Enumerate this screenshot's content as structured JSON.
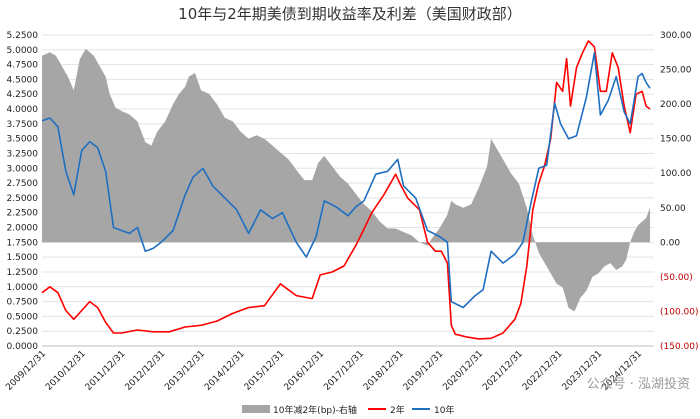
{
  "chart_data": {
    "type": "line",
    "title": "10年与2年期美债到期收益率及利差（美国财政部）",
    "xlabel": "",
    "ylabel_left": "",
    "ylabel_right": "",
    "y_left_ticks": [
      "0.0000",
      "0.2500",
      "0.5000",
      "0.7500",
      "1.0000",
      "1.2500",
      "1.5000",
      "1.7500",
      "2.0000",
      "2.2500",
      "2.5000",
      "2.7500",
      "3.0000",
      "3.2500",
      "3.5000",
      "3.7500",
      "4.0000",
      "4.2500",
      "4.5000",
      "4.7500",
      "5.0000",
      "5.2500"
    ],
    "y_left_range": [
      0,
      5.25
    ],
    "y_right_ticks": [
      "(150.00)",
      "(100.00)",
      "(50.00)",
      "0.00",
      "50.00",
      "100.00",
      "150.00",
      "200.00",
      "250.00",
      "300.00"
    ],
    "y_right_range": [
      -150,
      300
    ],
    "x_ticks": [
      "2009/12/31",
      "2010/12/31",
      "2011/12/31",
      "2012/12/31",
      "2013/12/31",
      "2014/12/31",
      "2015/12/31",
      "2016/12/31",
      "2017/12/31",
      "2018/12/31",
      "2019/12/31",
      "2020/12/31",
      "2021/12/31",
      "2022/12/31",
      "2023/12/31",
      "2024/12/31"
    ],
    "x_range": [
      2009.9,
      2025.3
    ],
    "legend": {
      "placement": "bottom-center",
      "entries": [
        "10年减2年(bp)-右轴",
        "2年",
        "10年"
      ]
    },
    "colors": {
      "spread": "#a6a6a6",
      "two_year": "#ff0000",
      "ten_year": "#1f6fc1",
      "negative_tick": "#c00000"
    },
    "series": [
      {
        "name": "10年减2年(bp)-右轴",
        "axis": "right",
        "kind": "area",
        "x": [
          2009.9,
          2010.1,
          2010.25,
          2010.4,
          2010.55,
          2010.7,
          2010.85,
          2011.0,
          2011.1,
          2011.2,
          2011.35,
          2011.5,
          2011.6,
          2011.75,
          2011.9,
          2012.1,
          2012.3,
          2012.5,
          2012.65,
          2012.8,
          2013.0,
          2013.2,
          2013.35,
          2013.5,
          2013.6,
          2013.75,
          2013.9,
          2014.1,
          2014.3,
          2014.5,
          2014.7,
          2014.9,
          2015.1,
          2015.3,
          2015.5,
          2015.7,
          2015.9,
          2016.1,
          2016.3,
          2016.5,
          2016.7,
          2016.85,
          2017.0,
          2017.2,
          2017.4,
          2017.6,
          2017.8,
          2018.0,
          2018.2,
          2018.4,
          2018.6,
          2018.8,
          2019.0,
          2019.2,
          2019.4,
          2019.6,
          2019.7,
          2019.9,
          2020.1,
          2020.2,
          2020.3,
          2020.5,
          2020.7,
          2020.9,
          2021.1,
          2021.2,
          2021.3,
          2021.5,
          2021.7,
          2021.9,
          2022.1,
          2022.25,
          2022.4,
          2022.55,
          2022.7,
          2022.85,
          2023.0,
          2023.15,
          2023.3,
          2023.45,
          2023.6,
          2023.75,
          2023.9,
          2024.05,
          2024.2,
          2024.35,
          2024.5,
          2024.6,
          2024.7,
          2024.8,
          2024.9,
          2025.0,
          2025.1,
          2025.2
        ],
        "values": [
          270,
          275,
          270,
          255,
          240,
          220,
          265,
          280,
          275,
          270,
          255,
          240,
          215,
          195,
          190,
          185,
          175,
          145,
          140,
          160,
          175,
          200,
          215,
          225,
          240,
          245,
          220,
          215,
          200,
          180,
          175,
          160,
          150,
          155,
          150,
          140,
          130,
          120,
          105,
          90,
          90,
          115,
          125,
          110,
          95,
          85,
          70,
          55,
          45,
          30,
          20,
          20,
          15,
          10,
          0,
          -5,
          5,
          20,
          40,
          60,
          55,
          50,
          55,
          80,
          110,
          150,
          140,
          120,
          100,
          85,
          50,
          10,
          -15,
          -30,
          -45,
          -60,
          -65,
          -95,
          -100,
          -80,
          -70,
          -50,
          -45,
          -35,
          -30,
          -40,
          -35,
          -25,
          0,
          15,
          25,
          30,
          35,
          50
        ]
      },
      {
        "name": "2年",
        "axis": "left",
        "kind": "line",
        "x": [
          2009.9,
          2010.1,
          2010.3,
          2010.5,
          2010.7,
          2010.9,
          2011.1,
          2011.3,
          2011.5,
          2011.7,
          2011.9,
          2012.3,
          2012.7,
          2013.1,
          2013.5,
          2013.9,
          2014.3,
          2014.7,
          2015.1,
          2015.5,
          2015.9,
          2016.3,
          2016.7,
          2016.9,
          2017.2,
          2017.5,
          2017.8,
          2017.95,
          2018.2,
          2018.5,
          2018.8,
          2018.9,
          2019.1,
          2019.4,
          2019.6,
          2019.8,
          2019.95,
          2020.1,
          2020.2,
          2020.3,
          2020.6,
          2020.9,
          2021.2,
          2021.5,
          2021.8,
          2021.95,
          2022.1,
          2022.25,
          2022.4,
          2022.55,
          2022.7,
          2022.85,
          2023.0,
          2023.1,
          2023.2,
          2023.35,
          2023.5,
          2023.65,
          2023.8,
          2023.95,
          2024.1,
          2024.25,
          2024.4,
          2024.55,
          2024.7,
          2024.85,
          2025.0,
          2025.1,
          2025.2
        ],
        "values": [
          0.9,
          1.0,
          0.9,
          0.6,
          0.45,
          0.6,
          0.75,
          0.65,
          0.4,
          0.22,
          0.22,
          0.27,
          0.24,
          0.24,
          0.32,
          0.35,
          0.42,
          0.55,
          0.65,
          0.68,
          1.05,
          0.85,
          0.8,
          1.2,
          1.25,
          1.35,
          1.7,
          1.9,
          2.25,
          2.55,
          2.9,
          2.75,
          2.5,
          2.3,
          1.75,
          1.6,
          1.6,
          1.4,
          0.35,
          0.2,
          0.15,
          0.12,
          0.13,
          0.22,
          0.45,
          0.72,
          1.35,
          2.3,
          2.75,
          3.05,
          3.5,
          4.45,
          4.3,
          4.85,
          4.05,
          4.7,
          4.95,
          5.15,
          5.05,
          4.3,
          4.3,
          4.95,
          4.7,
          4.05,
          3.6,
          4.25,
          4.3,
          4.05,
          4.0
        ]
      },
      {
        "name": "10年",
        "axis": "left",
        "kind": "line",
        "x": [
          2009.9,
          2010.1,
          2010.3,
          2010.5,
          2010.7,
          2010.9,
          2011.1,
          2011.3,
          2011.5,
          2011.7,
          2011.9,
          2012.1,
          2012.3,
          2012.5,
          2012.7,
          2012.9,
          2013.2,
          2013.5,
          2013.7,
          2013.95,
          2014.2,
          2014.5,
          2014.8,
          2015.1,
          2015.4,
          2015.7,
          2015.95,
          2016.3,
          2016.55,
          2016.8,
          2017.0,
          2017.3,
          2017.6,
          2017.8,
          2018.0,
          2018.3,
          2018.6,
          2018.85,
          2019.0,
          2019.3,
          2019.6,
          2019.9,
          2020.1,
          2020.2,
          2020.5,
          2020.8,
          2021.0,
          2021.2,
          2021.5,
          2021.8,
          2022.0,
          2022.2,
          2022.4,
          2022.6,
          2022.8,
          2022.95,
          2023.15,
          2023.35,
          2023.6,
          2023.8,
          2023.95,
          2024.15,
          2024.35,
          2024.55,
          2024.7,
          2024.9,
          2025.0,
          2025.1,
          2025.2
        ],
        "values": [
          3.8,
          3.85,
          3.7,
          2.95,
          2.55,
          3.3,
          3.45,
          3.35,
          2.95,
          2.0,
          1.95,
          1.9,
          2.0,
          1.6,
          1.65,
          1.75,
          1.95,
          2.55,
          2.85,
          3.0,
          2.7,
          2.5,
          2.3,
          1.9,
          2.3,
          2.15,
          2.25,
          1.75,
          1.5,
          1.85,
          2.45,
          2.35,
          2.2,
          2.35,
          2.45,
          2.9,
          2.95,
          3.15,
          2.7,
          2.5,
          1.95,
          1.85,
          1.75,
          0.75,
          0.65,
          0.85,
          0.95,
          1.6,
          1.4,
          1.55,
          1.75,
          2.4,
          3.0,
          3.05,
          4.1,
          3.75,
          3.5,
          3.55,
          4.2,
          4.95,
          3.9,
          4.15,
          4.55,
          3.95,
          3.75,
          4.55,
          4.6,
          4.45,
          4.35
        ]
      }
    ]
  },
  "watermark": "公众号 · 泓湖投资"
}
